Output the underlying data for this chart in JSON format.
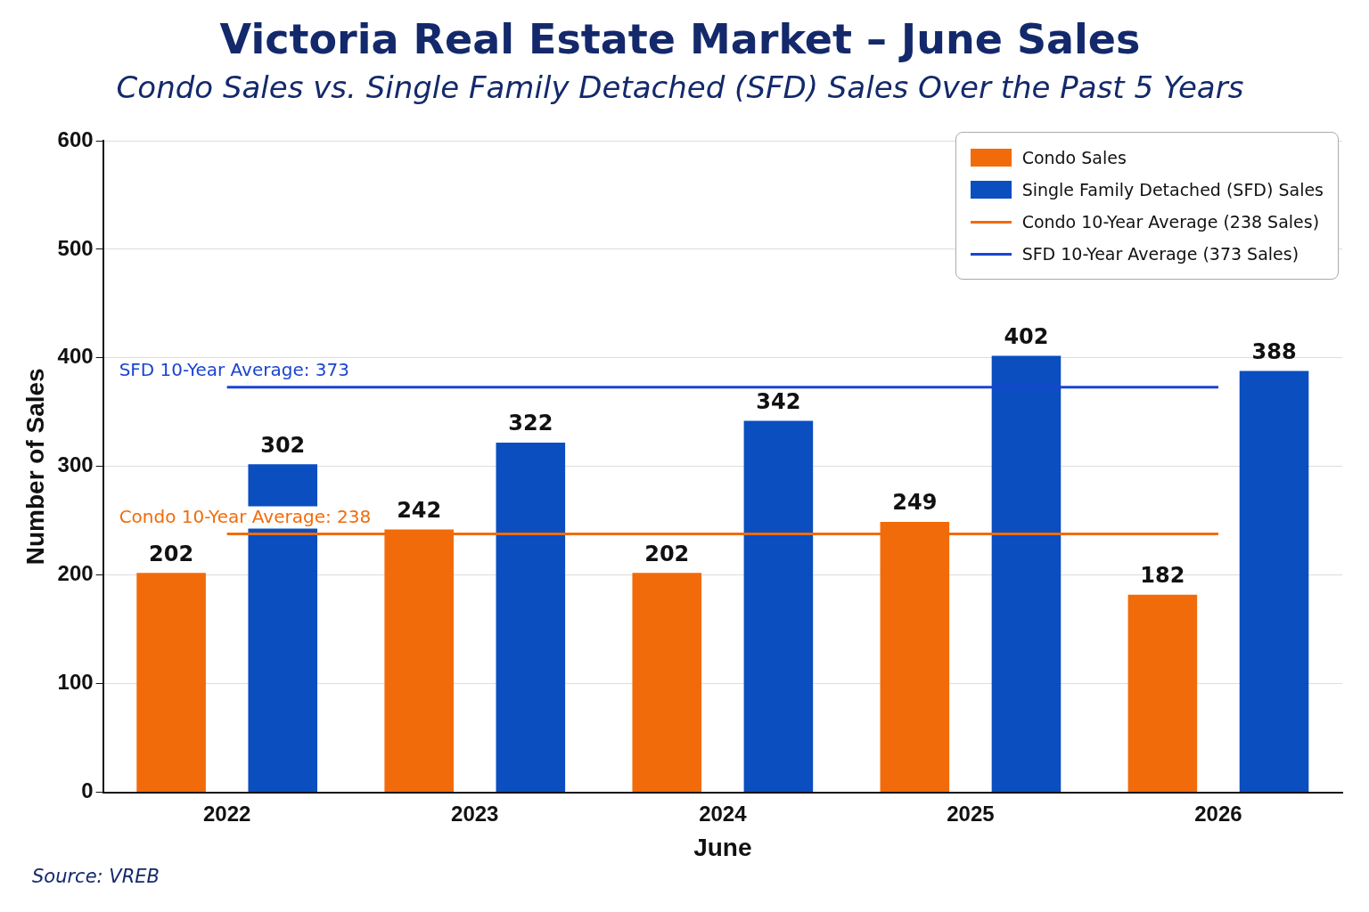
{
  "chart_data": {
    "type": "bar",
    "title": "Victoria Real Estate Market – June Sales",
    "subtitle": "Condo Sales vs. Single Family Detached (SFD) Sales Over the Past 5 Years",
    "xlabel": "June",
    "ylabel": "Number of Sales",
    "categories": [
      "2022",
      "2023",
      "2024",
      "2025",
      "2026"
    ],
    "series": [
      {
        "name": "Condo Sales",
        "color": "#f26b0a",
        "values": [
          202,
          242,
          202,
          249,
          182
        ],
        "value_labels": [
          "202",
          "242",
          "202",
          "249",
          "182"
        ]
      },
      {
        "name": "Single Family Detached (SFD) Sales",
        "color": "#0a4ec0",
        "values": [
          302,
          322,
          342,
          402,
          388
        ],
        "value_labels": [
          "302",
          "322",
          "342",
          "402",
          "388"
        ]
      },
      {
        "name": "Condo 10-Year Average (238 Sales)",
        "type": "line",
        "color": "#f26b0a",
        "values": [
          238,
          238,
          238,
          238,
          238
        ]
      },
      {
        "name": "SFD 10-Year Average (373 Sales)",
        "type": "line",
        "color": "#1a44d0",
        "values": [
          373,
          373,
          373,
          373,
          373
        ]
      }
    ],
    "annotations": [
      {
        "text": "SFD 10-Year Average: 373",
        "y": 373
      },
      {
        "text": "Condo 10-Year Average: 238",
        "y": 238
      },
      "Source: VREB"
    ],
    "ylim": [
      0,
      600
    ],
    "yticks": [
      0,
      100,
      200,
      300,
      400,
      500,
      600
    ],
    "grid": "y",
    "legend": "top right"
  }
}
